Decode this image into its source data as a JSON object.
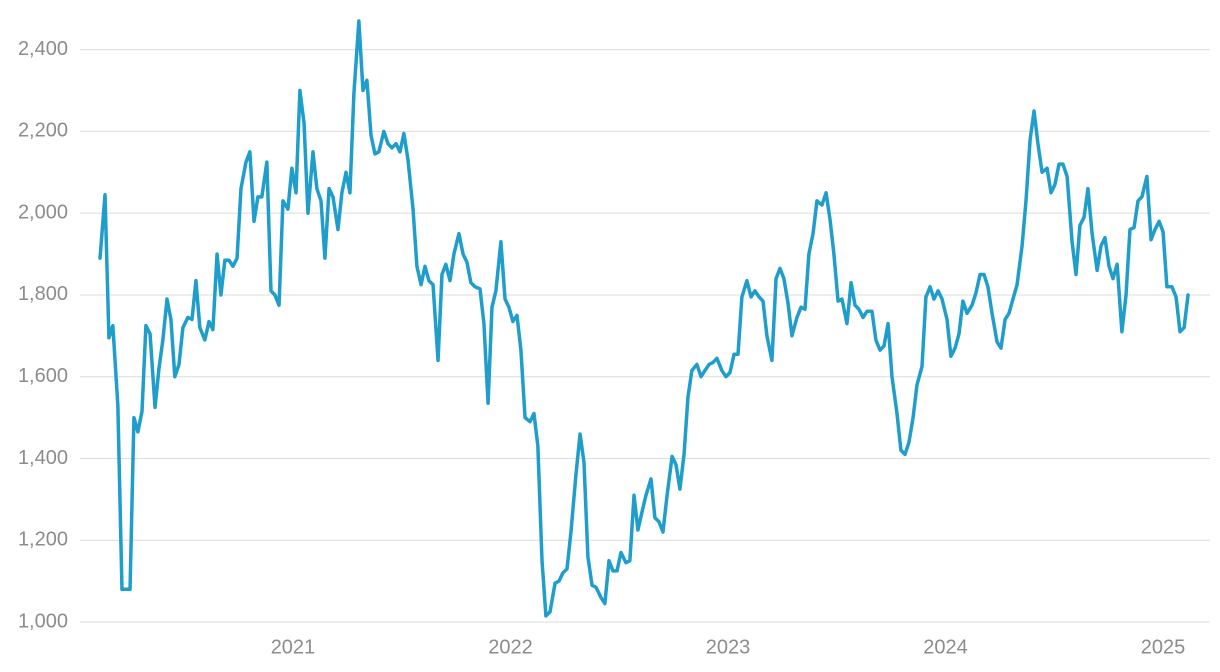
{
  "chart_data": {
    "type": "line",
    "color": "#1f9dcb",
    "grid": true,
    "xlim": [
      2020.021,
      2025.216
    ],
    "xticks": [
      2021,
      2022,
      2023,
      2024,
      2025
    ],
    "ylim": [
      1000,
      2475
    ],
    "yticks": [
      {
        "value": 1000,
        "label": "1,000"
      },
      {
        "value": 1200,
        "label": "1,200"
      },
      {
        "value": 1400,
        "label": "1,400"
      },
      {
        "value": 1600,
        "label": "1,600"
      },
      {
        "value": 1800,
        "label": "1,800"
      },
      {
        "value": 2000,
        "label": "2,000"
      },
      {
        "value": 2200,
        "label": "2,200"
      },
      {
        "value": 2400,
        "label": "2,400"
      }
    ],
    "x": [
      2020.113,
      2020.136,
      2020.154,
      2020.172,
      2020.195,
      2020.214,
      2020.251,
      2020.269,
      2020.287,
      2020.306,
      2020.324,
      2020.343,
      2020.366,
      2020.384,
      2020.402,
      2020.421,
      2020.439,
      2020.457,
      2020.476,
      2020.494,
      2020.517,
      2020.536,
      2020.554,
      2020.572,
      2020.595,
      2020.614,
      2020.632,
      2020.651,
      2020.669,
      2020.687,
      2020.706,
      2020.724,
      2020.743,
      2020.761,
      2020.784,
      2020.802,
      2020.821,
      2020.839,
      2020.857,
      2020.88,
      2020.899,
      2020.917,
      2020.936,
      2020.954,
      2020.977,
      2020.995,
      2021.014,
      2021.032,
      2021.051,
      2021.069,
      2021.092,
      2021.11,
      2021.129,
      2021.147,
      2021.166,
      2021.184,
      2021.207,
      2021.225,
      2021.244,
      2021.262,
      2021.28,
      2021.303,
      2021.322,
      2021.34,
      2021.359,
      2021.377,
      2021.395,
      2021.418,
      2021.437,
      2021.455,
      2021.474,
      2021.492,
      2021.51,
      2021.529,
      2021.552,
      2021.57,
      2021.589,
      2021.607,
      2021.625,
      2021.644,
      2021.667,
      2021.685,
      2021.703,
      2021.722,
      2021.74,
      2021.763,
      2021.782,
      2021.8,
      2021.818,
      2021.837,
      2021.86,
      2021.878,
      2021.897,
      2021.915,
      2021.933,
      2021.956,
      2021.975,
      2021.993,
      2022.011,
      2022.03,
      2022.048,
      2022.067,
      2022.09,
      2022.108,
      2022.126,
      2022.145,
      2022.163,
      2022.182,
      2022.205,
      2022.223,
      2022.241,
      2022.26,
      2022.278,
      2022.301,
      2022.32,
      2022.338,
      2022.356,
      2022.375,
      2022.393,
      2022.416,
      2022.434,
      2022.453,
      2022.471,
      2022.49,
      2022.508,
      2022.531,
      2022.549,
      2022.568,
      2022.586,
      2022.605,
      2022.623,
      2022.646,
      2022.664,
      2022.683,
      2022.701,
      2022.72,
      2022.743,
      2022.761,
      2022.779,
      2022.798,
      2022.816,
      2022.834,
      2022.857,
      2022.876,
      2022.894,
      2022.913,
      2022.931,
      2022.949,
      2022.972,
      2022.991,
      2023.009,
      2023.028,
      2023.046,
      2023.064,
      2023.087,
      2023.106,
      2023.124,
      2023.143,
      2023.161,
      2023.179,
      2023.202,
      2023.221,
      2023.239,
      2023.257,
      2023.276,
      2023.294,
      2023.317,
      2023.336,
      2023.354,
      2023.372,
      2023.391,
      2023.409,
      2023.432,
      2023.451,
      2023.469,
      2023.487,
      2023.506,
      2023.524,
      2023.547,
      2023.566,
      2023.584,
      2023.602,
      2023.621,
      2023.639,
      2023.662,
      2023.68,
      2023.699,
      2023.717,
      2023.736,
      2023.754,
      2023.777,
      2023.795,
      2023.814,
      2023.832,
      2023.851,
      2023.869,
      2023.892,
      2023.91,
      2023.929,
      2023.947,
      2023.966,
      2023.984,
      2024.007,
      2024.025,
      2024.044,
      2024.062,
      2024.08,
      2024.099,
      2024.122,
      2024.14,
      2024.159,
      2024.177,
      2024.195,
      2024.214,
      2024.237,
      2024.255,
      2024.274,
      2024.292,
      2024.31,
      2024.329,
      2024.352,
      2024.37,
      2024.389,
      2024.407,
      2024.425,
      2024.444,
      2024.467,
      2024.485,
      2024.503,
      2024.522,
      2024.54,
      2024.559,
      2024.582,
      2024.6,
      2024.618,
      2024.637,
      2024.655,
      2024.674,
      2024.697,
      2024.715,
      2024.733,
      2024.752,
      2024.77,
      2024.789,
      2024.811,
      2024.83,
      2024.848,
      2024.867,
      2024.885,
      2024.903,
      2024.926,
      2024.945,
      2024.963,
      2024.982,
      2025.0,
      2025.018,
      2025.041,
      2025.06,
      2025.078,
      2025.097,
      2025.115
    ],
    "values": [
      1890,
      2045,
      1695,
      1725,
      1530,
      1080,
      1080,
      1500,
      1465,
      1515,
      1725,
      1705,
      1525,
      1620,
      1690,
      1790,
      1740,
      1600,
      1630,
      1720,
      1745,
      1740,
      1835,
      1720,
      1690,
      1735,
      1715,
      1900,
      1800,
      1885,
      1885,
      1870,
      1890,
      2060,
      2125,
      2150,
      1980,
      2040,
      2040,
      2125,
      1810,
      1800,
      1775,
      2030,
      2010,
      2110,
      2050,
      2300,
      2220,
      2000,
      2150,
      2060,
      2030,
      1890,
      2060,
      2040,
      1960,
      2050,
      2100,
      2050,
      2290,
      2470,
      2300,
      2325,
      2190,
      2145,
      2150,
      2200,
      2170,
      2160,
      2170,
      2150,
      2195,
      2130,
      2010,
      1870,
      1825,
      1870,
      1835,
      1825,
      1640,
      1850,
      1875,
      1835,
      1900,
      1950,
      1900,
      1880,
      1830,
      1820,
      1815,
      1730,
      1535,
      1770,
      1810,
      1930,
      1790,
      1770,
      1735,
      1750,
      1665,
      1500,
      1490,
      1510,
      1430,
      1150,
      1015,
      1025,
      1095,
      1100,
      1120,
      1130,
      1220,
      1360,
      1460,
      1390,
      1160,
      1090,
      1085,
      1060,
      1045,
      1150,
      1125,
      1125,
      1170,
      1145,
      1150,
      1310,
      1225,
      1270,
      1310,
      1350,
      1255,
      1245,
      1220,
      1310,
      1405,
      1385,
      1325,
      1410,
      1550,
      1615,
      1630,
      1600,
      1615,
      1630,
      1635,
      1645,
      1615,
      1600,
      1610,
      1655,
      1655,
      1795,
      1835,
      1795,
      1810,
      1795,
      1785,
      1700,
      1640,
      1840,
      1865,
      1840,
      1780,
      1700,
      1745,
      1770,
      1765,
      1900,
      1950,
      2030,
      2020,
      2050,
      1985,
      1900,
      1785,
      1790,
      1730,
      1830,
      1775,
      1765,
      1745,
      1760,
      1760,
      1690,
      1665,
      1675,
      1730,
      1600,
      1510,
      1420,
      1410,
      1440,
      1500,
      1580,
      1625,
      1795,
      1820,
      1790,
      1810,
      1790,
      1740,
      1650,
      1670,
      1705,
      1785,
      1755,
      1775,
      1805,
      1850,
      1850,
      1820,
      1755,
      1685,
      1670,
      1740,
      1755,
      1790,
      1825,
      1920,
      2030,
      2180,
      2250,
      2170,
      2100,
      2110,
      2050,
      2070,
      2120,
      2120,
      2090,
      1930,
      1850,
      1970,
      1990,
      2060,
      1950,
      1860,
      1920,
      1940,
      1870,
      1840,
      1875,
      1710,
      1800,
      1960,
      1965,
      2030,
      2040,
      2090,
      1935,
      1960,
      1980,
      1955,
      1820,
      1820,
      1795,
      1710,
      1720,
      1800
    ]
  }
}
